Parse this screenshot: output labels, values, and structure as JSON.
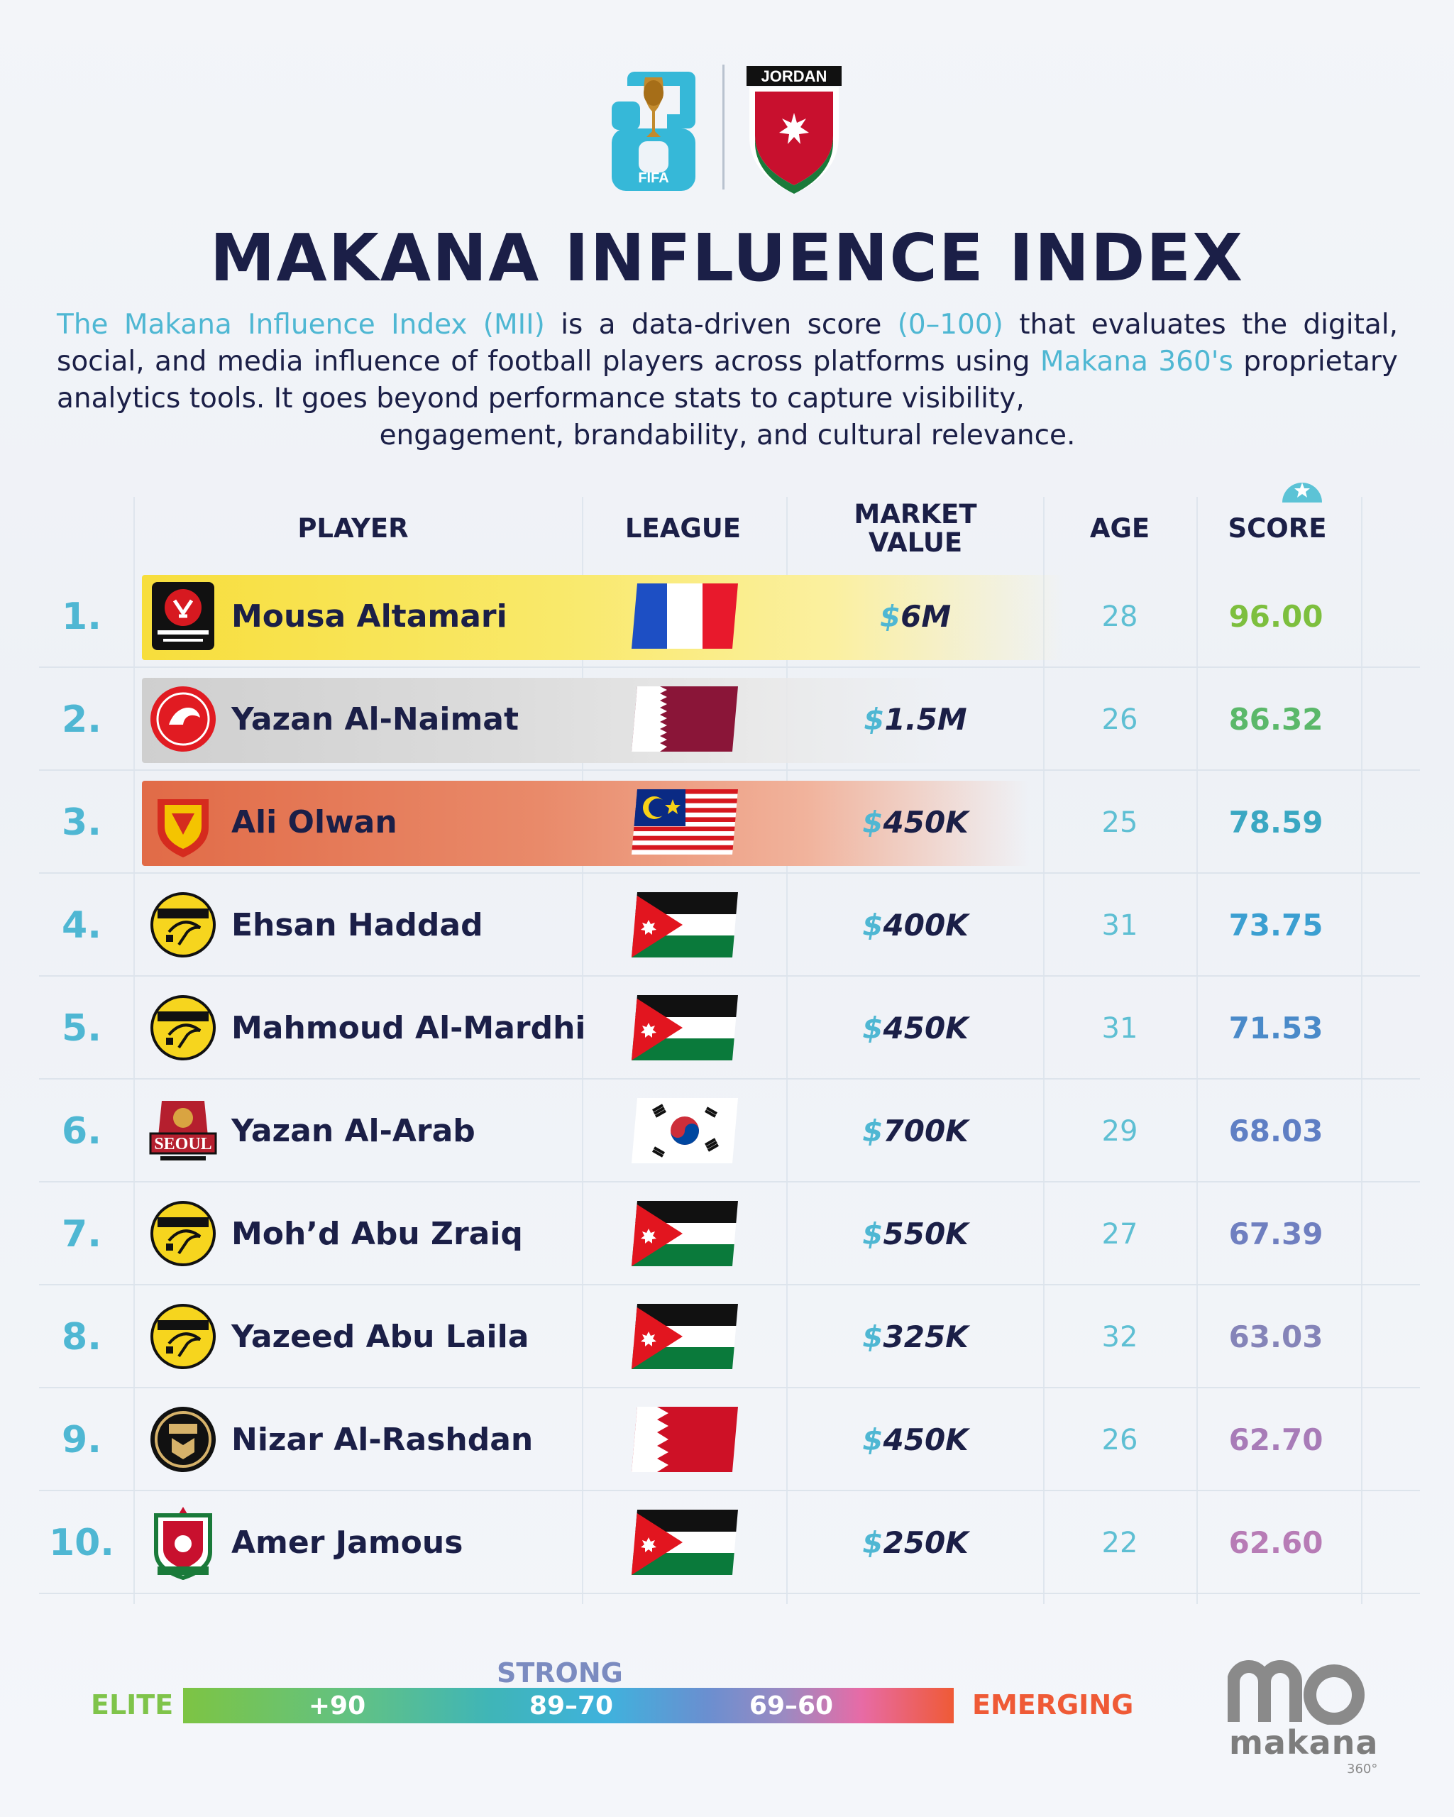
{
  "header": {
    "fifa_logo": {
      "text_top": "26",
      "text_label": "FIFA"
    },
    "jordan_logo": {
      "text": "JORDAN"
    },
    "title": "MAKANA INFLUENCE INDEX"
  },
  "intro": {
    "p1_hl": "The Makana Influence Index (MII)",
    "p2": " is a data-driven score ",
    "p3_hl": "(0–100)",
    "p4": " that evaluates the digital, social, and media influence of football players across platforms using ",
    "p5_hl": "Makana 360's",
    "p6": " proprietary analytics tools. It goes beyond performance stats to capture visibility,",
    "p7": "engagement, brandability, and cultural relevance."
  },
  "table": {
    "headers": {
      "player": "PLAYER",
      "league": "LEAGUE",
      "market_value_1": "MARKET",
      "market_value_2": "VALUE",
      "age": "AGE",
      "score": "SCORE"
    },
    "rows": [
      {
        "rank": "1.",
        "player": "Mousa Altamari",
        "crest": "stade-rennais-crest",
        "flag": "france-flag",
        "currency": "$",
        "value": "6M",
        "age": "28",
        "score": "96.00",
        "score_color": "#7dbf3e",
        "highlight": "gold"
      },
      {
        "rank": "2.",
        "player": "Yazan Al-Naimat",
        "crest": "al-arabi-crest",
        "flag": "qatar-flag",
        "currency": "$",
        "value": "1.5M",
        "age": "26",
        "score": "86.32",
        "score_color": "#5bb86a",
        "highlight": "silver"
      },
      {
        "rank": "3.",
        "player": "Ali Olwan",
        "crest": "selangor-crest",
        "flag": "malaysia-flag",
        "currency": "$",
        "value": "450K",
        "age": "25",
        "score": "78.59",
        "score_color": "#3aa7c2",
        "highlight": "bronze"
      },
      {
        "rank": "4.",
        "player": "Ehsan Haddad",
        "crest": "al-hussein-crest",
        "flag": "jordan-flag",
        "currency": "$",
        "value": "400K",
        "age": "31",
        "score": "73.75",
        "score_color": "#3b9fd1",
        "highlight": "none"
      },
      {
        "rank": "5.",
        "player": "Mahmoud Al-Mardhi",
        "crest": "al-hussein-crest",
        "flag": "jordan-flag",
        "currency": "$",
        "value": "450K",
        "age": "31",
        "score": "71.53",
        "score_color": "#4a8ac9",
        "highlight": "none"
      },
      {
        "rank": "6.",
        "player": "Yazan Al-Arab",
        "crest": "fc-seoul-crest",
        "flag": "south-korea-flag",
        "currency": "$",
        "value": "700K",
        "age": "29",
        "score": "68.03",
        "score_color": "#5f7fc4",
        "highlight": "none"
      },
      {
        "rank": "7.",
        "player": "Moh’d Abu Zraiq",
        "crest": "al-hussein-crest",
        "flag": "jordan-flag",
        "currency": "$",
        "value": "550K",
        "age": "27",
        "score": "67.39",
        "score_color": "#6f7fc0",
        "highlight": "none"
      },
      {
        "rank": "8.",
        "player": "Yazeed Abu Laila",
        "crest": "al-hussein-crest",
        "flag": "jordan-flag",
        "currency": "$",
        "value": "325K",
        "age": "32",
        "score": "63.03",
        "score_color": "#8584b8",
        "highlight": "none"
      },
      {
        "rank": "9.",
        "player": "Nizar Al-Rashdan",
        "crest": "al-khaldiya-crest",
        "flag": "bahrain-flag",
        "currency": "$",
        "value": "450K",
        "age": "26",
        "score": "62.70",
        "score_color": "#a87cb8",
        "highlight": "none"
      },
      {
        "rank": "10.",
        "player": "Amer Jamous",
        "crest": "al-wehdat-crest",
        "flag": "jordan-flag",
        "currency": "$",
        "value": "250K",
        "age": "22",
        "score": "62.60",
        "score_color": "#b77cb6",
        "highlight": "none"
      }
    ]
  },
  "legend": {
    "elite": "ELITE",
    "strong": "STRONG",
    "range1": "+90",
    "range2": "89–70",
    "range3": "69–60",
    "emerging": "EMERGING"
  },
  "brand": {
    "word": "makana",
    "sub": "360°"
  }
}
